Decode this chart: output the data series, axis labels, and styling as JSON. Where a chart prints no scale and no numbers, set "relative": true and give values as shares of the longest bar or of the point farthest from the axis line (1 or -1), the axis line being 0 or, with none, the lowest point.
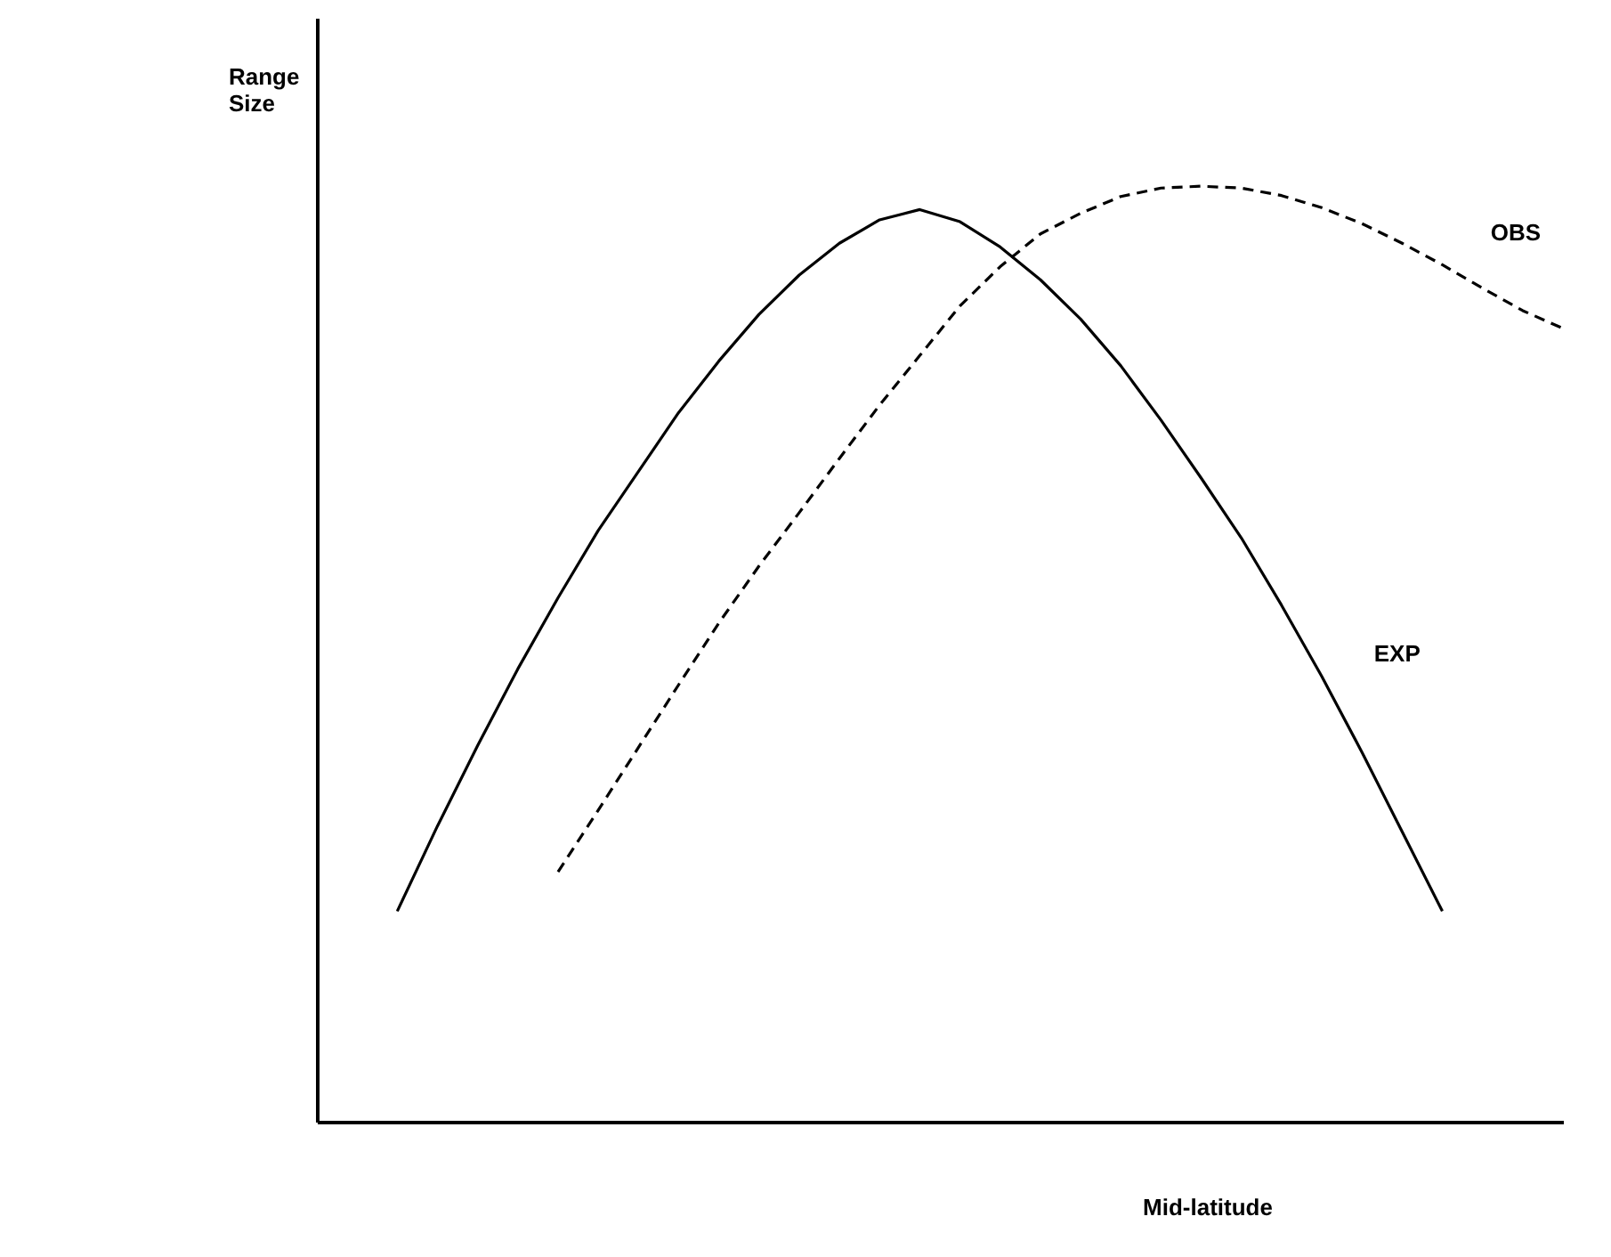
{
  "chart_data": {
    "type": "line",
    "relative": true,
    "xlabel": "Mid-latitude",
    "ylabel": "Range Size",
    "grid": false,
    "tick_labels": false,
    "categories": [
      null,
      null,
      null,
      null,
      null,
      null,
      null,
      null,
      null,
      null,
      null,
      null,
      null,
      null,
      null,
      null,
      null,
      null,
      null,
      null,
      null,
      null,
      null,
      null,
      null,
      null,
      null,
      null,
      null,
      null
    ],
    "series": [
      {
        "name": "EXP",
        "color": "#000000",
        "line_style": "solid",
        "values": [
          0.225,
          0.316,
          0.402,
          0.484,
          0.56,
          0.632,
          0.695,
          0.758,
          0.813,
          0.863,
          0.905,
          0.939,
          0.964,
          0.975,
          0.962,
          0.935,
          0.9,
          0.858,
          0.808,
          0.75,
          0.688,
          0.624,
          0.552,
          0.476,
          0.395,
          0.31,
          0.225,
          null,
          null,
          null
        ]
      },
      {
        "name": "OBS",
        "color": "#000000",
        "line_style": "dashed",
        "values": [
          null,
          null,
          null,
          null,
          0.267,
          0.333,
          0.4,
          0.467,
          0.533,
          0.594,
          0.651,
          0.709,
          0.766,
          0.819,
          0.872,
          0.914,
          0.949,
          0.971,
          0.989,
          0.998,
          1.0,
          0.998,
          0.99,
          0.977,
          0.96,
          0.939,
          0.916,
          0.891,
          0.867,
          0.848
        ]
      }
    ]
  }
}
